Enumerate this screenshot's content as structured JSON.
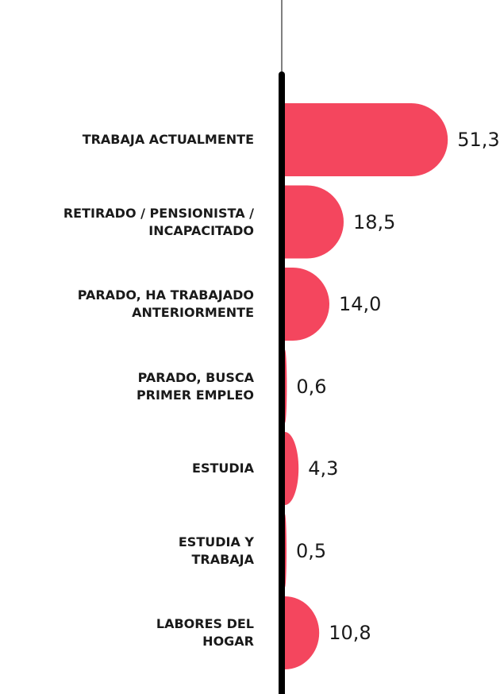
{
  "chart_data": {
    "type": "bar",
    "orientation": "horizontal",
    "categories": [
      "TRABAJA ACTUALMENTE",
      "RETIRADO / PENSIONISTA /\nINCAPACITADO",
      "PARADO, HA TRABAJADO\nANTERIORMENTE",
      "PARADO, BUSCA\nPRIMER EMPLEO",
      "ESTUDIA",
      "ESTUDIA Y\nTRABAJA",
      "LABORES DEL\nHOGAR"
    ],
    "values": [
      51.3,
      18.5,
      14.0,
      0.6,
      4.3,
      0.5,
      10.8
    ],
    "value_labels": [
      "51,3",
      "18,5",
      "14,0",
      "0,6",
      "4,3",
      "0,5",
      "10,8"
    ],
    "color": "#f4465e",
    "xlim": [
      0,
      60
    ]
  }
}
